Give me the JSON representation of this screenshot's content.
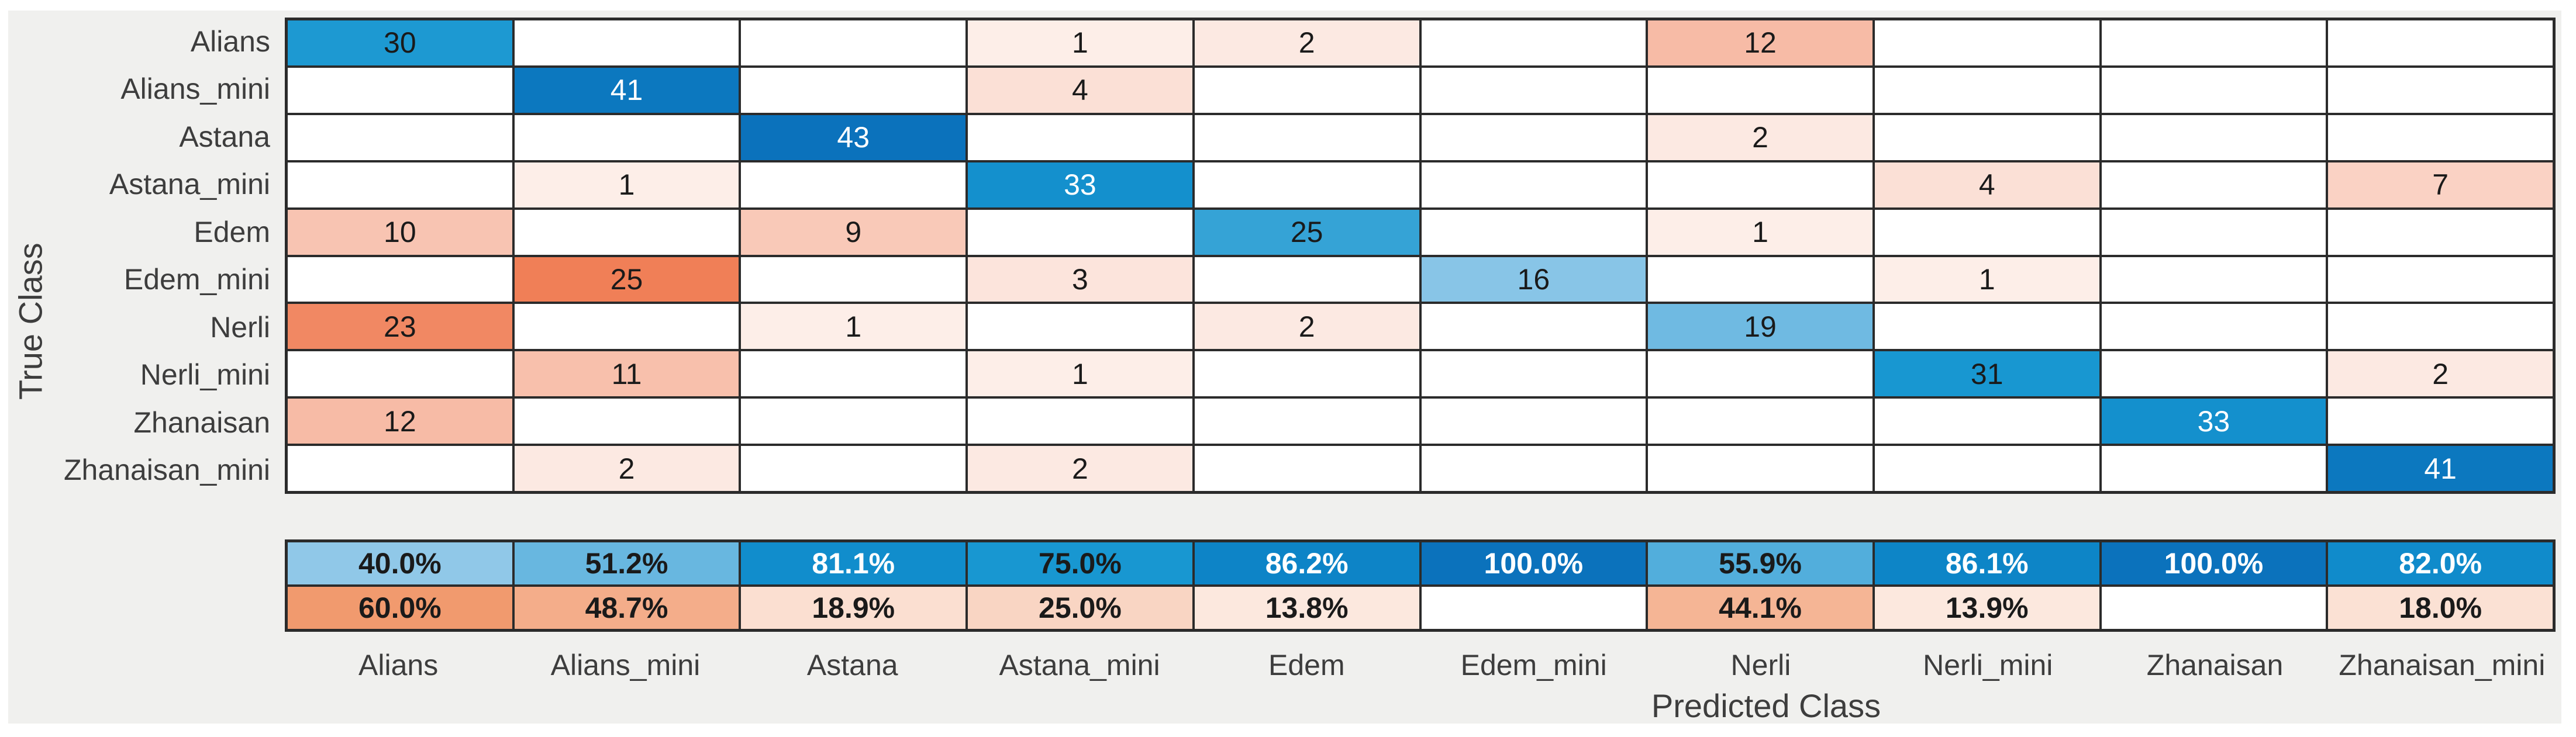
{
  "figure": {
    "background": "#f0f0ee",
    "page_background": "#ffffff"
  },
  "chart_data": {
    "type": "heatmap",
    "chart_kind": "confusion-matrix",
    "xlabel": "Predicted Class",
    "ylabel": "True Class",
    "legend_position": "none",
    "grid": "on",
    "classes": [
      "Alians",
      "Alians_mini",
      "Astana",
      "Astana_mini",
      "Edem",
      "Edem_mini",
      "Nerli",
      "Nerli_mini",
      "Zhanaisan",
      "Zhanaisan_mini"
    ],
    "matrix": [
      [
        30,
        0,
        0,
        1,
        2,
        0,
        12,
        0,
        0,
        0
      ],
      [
        0,
        41,
        0,
        4,
        0,
        0,
        0,
        0,
        0,
        0
      ],
      [
        0,
        0,
        43,
        0,
        0,
        0,
        2,
        0,
        0,
        0
      ],
      [
        0,
        1,
        0,
        33,
        0,
        0,
        0,
        4,
        0,
        7
      ],
      [
        10,
        0,
        9,
        0,
        25,
        0,
        1,
        0,
        0,
        0
      ],
      [
        0,
        25,
        0,
        3,
        0,
        16,
        0,
        1,
        0,
        0
      ],
      [
        23,
        0,
        1,
        0,
        2,
        0,
        19,
        0,
        0,
        0
      ],
      [
        0,
        11,
        0,
        1,
        0,
        0,
        0,
        31,
        0,
        2
      ],
      [
        12,
        0,
        0,
        0,
        0,
        0,
        0,
        0,
        33,
        0
      ],
      [
        0,
        2,
        0,
        2,
        0,
        0,
        0,
        0,
        0,
        41
      ]
    ],
    "column_summary": {
      "correct_values": [
        40.0,
        51.2,
        81.1,
        75.0,
        86.2,
        100.0,
        55.9,
        86.1,
        100.0,
        82.0
      ],
      "correct_labels": [
        "40.0%",
        "51.2%",
        "81.1%",
        "75.0%",
        "86.2%",
        "100.0%",
        "55.9%",
        "86.1%",
        "100.0%",
        "82.0%"
      ],
      "incorrect_values": [
        60.0,
        48.7,
        18.9,
        25.0,
        13.8,
        null,
        44.1,
        13.9,
        null,
        18.0
      ],
      "incorrect_labels": [
        "60.0%",
        "48.7%",
        "18.9%",
        "25.0%",
        "13.8%",
        "",
        "44.1%",
        "13.9%",
        "",
        "18.0%"
      ]
    },
    "colors": {
      "diagonal_full": "#0b72bc",
      "off_diagonal_full": "#f07f57",
      "summary_incorrect_full": "#e8570e",
      "grid_line": "#2b2b2b",
      "cell_background": "#ffffff",
      "text_dark": "#1a1a1a",
      "text_light": "#ffffff",
      "label_color": "#3d3d3d"
    }
  }
}
